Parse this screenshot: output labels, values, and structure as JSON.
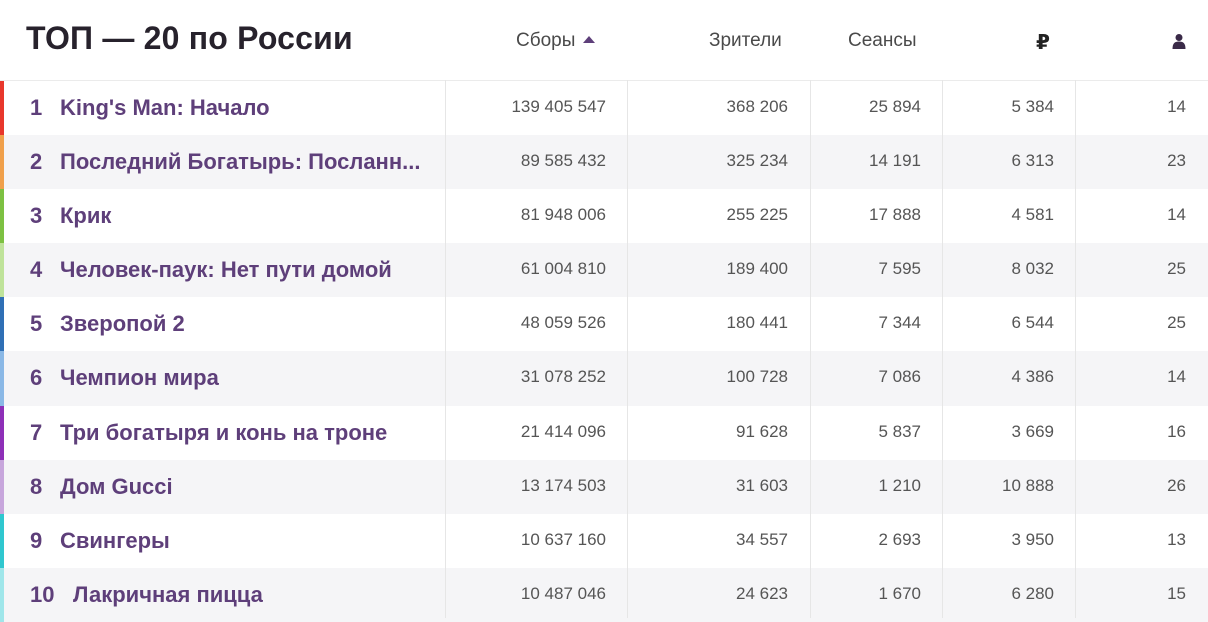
{
  "header": {
    "title": "ТОП — 20 по России",
    "col_gross": "Сборы",
    "col_viewers": "Зрители",
    "col_sessions": "Сеансы",
    "col_price": "₽",
    "col_age_icon": "person-icon",
    "sort_icon": "sort-up-icon"
  },
  "colors": {
    "accent_purple": "#5e3f7a",
    "row_stripe": "#f5f5f7"
  },
  "rows": [
    {
      "rank": "1",
      "title": "King's Man: Начало",
      "gross": "139 405 547",
      "viewers": "368 206",
      "sessions": "25 894",
      "price": "5 384",
      "age": "14",
      "color": "#e8372c"
    },
    {
      "rank": "2",
      "title": "Последний Богатырь: Посланн...",
      "gross": "89 585 432",
      "viewers": "325 234",
      "sessions": "14 191",
      "price": "6 313",
      "age": "23",
      "color": "#f0a04b"
    },
    {
      "rank": "3",
      "title": "Крик",
      "gross": "81 948 006",
      "viewers": "255 225",
      "sessions": "17 888",
      "price": "4 581",
      "age": "14",
      "color": "#7dc142"
    },
    {
      "rank": "4",
      "title": "Человек-паук: Нет пути домой",
      "gross": "61 004 810",
      "viewers": "189 400",
      "sessions": "7 595",
      "price": "8 032",
      "age": "25",
      "color": "#bfe39a"
    },
    {
      "rank": "5",
      "title": "Зверопой 2",
      "gross": "48 059 526",
      "viewers": "180 441",
      "sessions": "7 344",
      "price": "6 544",
      "age": "25",
      "color": "#2f6fb5"
    },
    {
      "rank": "6",
      "title": "Чемпион мира",
      "gross": "31 078 252",
      "viewers": "100 728",
      "sessions": "7 086",
      "price": "4 386",
      "age": "14",
      "color": "#8ab8e6"
    },
    {
      "rank": "7",
      "title": "Три богатыря и конь на троне",
      "gross": "21 414 096",
      "viewers": "91 628",
      "sessions": "5 837",
      "price": "3 669",
      "age": "16",
      "color": "#8e2fb8"
    },
    {
      "rank": "8",
      "title": "Дом Gucci",
      "gross": "13 174 503",
      "viewers": "31 603",
      "sessions": "1 210",
      "price": "10 888",
      "age": "26",
      "color": "#c7a6dc"
    },
    {
      "rank": "9",
      "title": "Свингеры",
      "gross": "10 637 160",
      "viewers": "34 557",
      "sessions": "2 693",
      "price": "3 950",
      "age": "13",
      "color": "#2fc7cf"
    },
    {
      "rank": "10",
      "title": "Лакричная пицца",
      "gross": "10 487 046",
      "viewers": "24 623",
      "sessions": "1 670",
      "price": "6 280",
      "age": "15",
      "color": "#9fe6ea"
    }
  ]
}
